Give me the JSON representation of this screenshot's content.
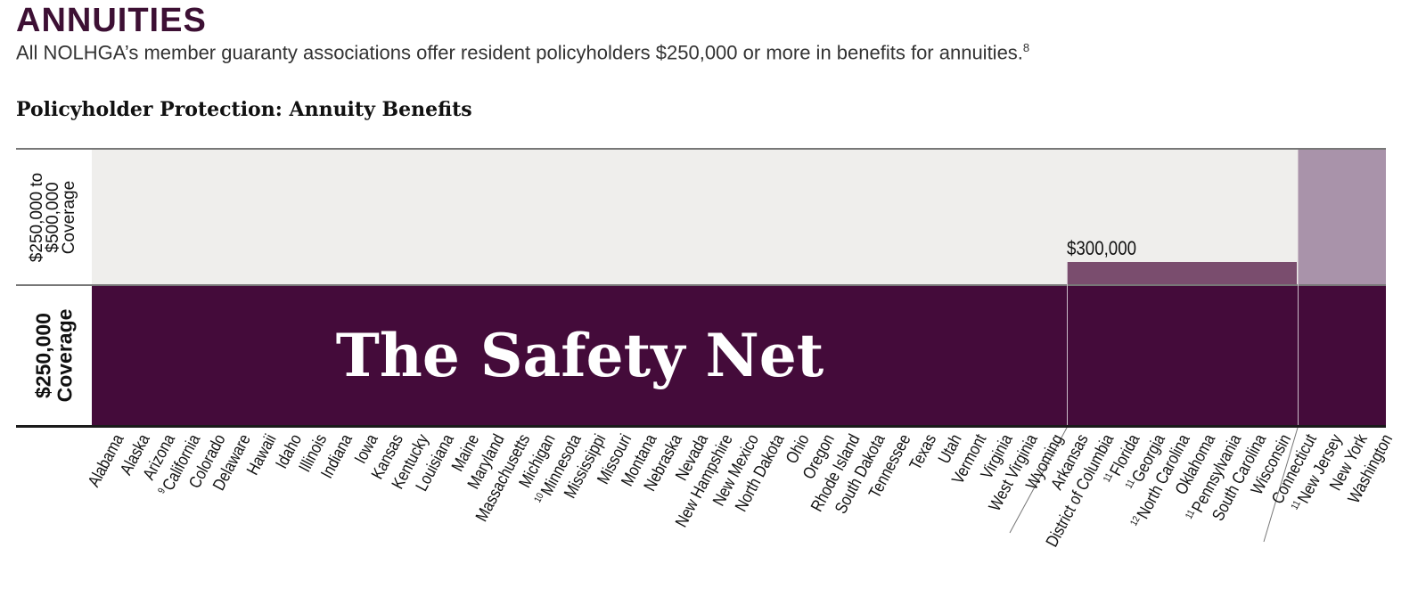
{
  "header": {
    "title": "ANNUITIES",
    "subtitle": "All NOLHGA’s member guaranty associations offer resident policyholders $250,000 or more in benefits for annuities.",
    "subtitle_footnote": "8"
  },
  "chart_data": {
    "type": "bar",
    "title": "Policyholder Protection: Annuity Benefits",
    "row_labels": {
      "upper": "$250,000 to $500,000 Coverage",
      "upper_lines": [
        "$250,000 to",
        "$500,000",
        "Coverage"
      ],
      "lower_lines": [
        "$250,000",
        "Coverage"
      ]
    },
    "banner": "The Safety Net",
    "value_label": "$300,000",
    "colors": {
      "base": "#440b3a",
      "mid": "#7a4d6e",
      "high": "#a993aa",
      "background": "#efeeec"
    },
    "groups": [
      {
        "coverage": 250000,
        "states": [
          {
            "name": "Alabama"
          },
          {
            "name": "Alaska"
          },
          {
            "name": "Arizona"
          },
          {
            "name": "California",
            "note": "9"
          },
          {
            "name": "Colorado"
          },
          {
            "name": "Delaware"
          },
          {
            "name": "Hawaii"
          },
          {
            "name": "Idaho"
          },
          {
            "name": "Illinois"
          },
          {
            "name": "Indiana"
          },
          {
            "name": "Iowa"
          },
          {
            "name": "Kansas"
          },
          {
            "name": "Kentucky"
          },
          {
            "name": "Louisiana"
          },
          {
            "name": "Maine"
          },
          {
            "name": "Maryland"
          },
          {
            "name": "Massachusetts"
          },
          {
            "name": "Michigan"
          },
          {
            "name": "Minnesota",
            "note": "10"
          },
          {
            "name": "Mississippi"
          },
          {
            "name": "Missouri"
          },
          {
            "name": "Montana"
          },
          {
            "name": "Nebraska"
          },
          {
            "name": "Nevada"
          },
          {
            "name": "New Hampshire"
          },
          {
            "name": "New Mexico"
          },
          {
            "name": "North Dakota"
          },
          {
            "name": "Ohio"
          },
          {
            "name": "Oregon"
          },
          {
            "name": "Rhode Island"
          },
          {
            "name": "South Dakota"
          },
          {
            "name": "Tennessee"
          },
          {
            "name": "Texas"
          },
          {
            "name": "Utah"
          },
          {
            "name": "Vermont"
          },
          {
            "name": "Virginia"
          },
          {
            "name": "West Virginia"
          },
          {
            "name": "Wyoming"
          }
        ]
      },
      {
        "coverage": 300000,
        "states": [
          {
            "name": "Arkansas"
          },
          {
            "name": "District of Columbia"
          },
          {
            "name": "Florida",
            "note": "11"
          },
          {
            "name": "Georgia",
            "note": "11"
          },
          {
            "name": "North Carolina",
            "note": "12"
          },
          {
            "name": "Oklahoma"
          },
          {
            "name": "Pennsylvania",
            "note": "11"
          },
          {
            "name": "South Carolina"
          },
          {
            "name": "Wisconsin"
          }
        ]
      },
      {
        "coverage": 500000,
        "states": [
          {
            "name": "Connecticut"
          },
          {
            "name": "New Jersey",
            "note": "11"
          },
          {
            "name": "New York"
          },
          {
            "name": "Washington"
          }
        ]
      }
    ]
  }
}
